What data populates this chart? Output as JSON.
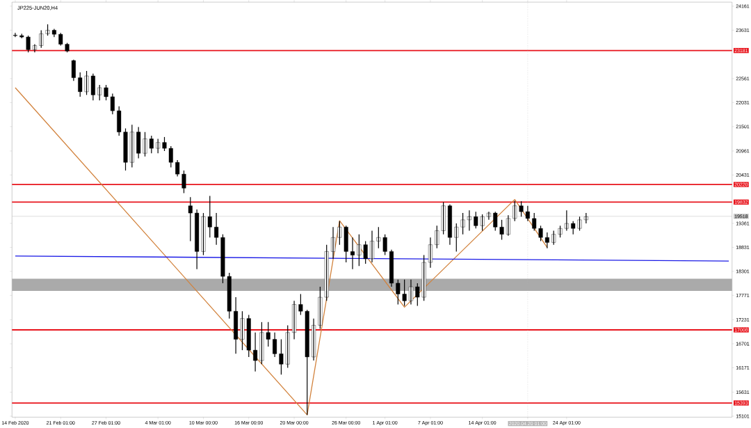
{
  "chart_data": {
    "type": "candlestick",
    "title": "JP225-JUN20,H4",
    "color": "#000000",
    "categories": [
      "14 Feb 2020",
      null,
      null,
      null,
      null,
      null,
      null,
      "21 Feb 01:00",
      null,
      null,
      null,
      null,
      null,
      null,
      "27 Feb 01:00",
      null,
      null,
      null,
      null,
      null,
      null,
      null,
      "4 Mar 01:00",
      null,
      null,
      null,
      null,
      null,
      null,
      "10 Mar 00:00",
      null,
      null,
      null,
      null,
      null,
      null,
      "16 Mar 00:00",
      null,
      null,
      null,
      null,
      null,
      null,
      "20 Mar 00:00",
      null,
      null,
      null,
      null,
      null,
      null,
      null,
      "26 Mar 00:00",
      null,
      null,
      null,
      null,
      null,
      "1 Apr 01:00",
      null,
      null,
      null,
      null,
      null,
      null,
      "7 Apr 01:00",
      null,
      null,
      null,
      null,
      null,
      null,
      null,
      "14 Apr 01:00",
      null,
      null,
      null,
      null,
      null,
      null,
      "2020.04.20 01:00",
      null,
      null,
      null,
      null,
      null,
      "24 Apr 01:00",
      null,
      null,
      null,
      null,
      null,
      null,
      null,
      null,
      null,
      null,
      null,
      null,
      null,
      null,
      null,
      null,
      null,
      null,
      null,
      null,
      null,
      null,
      null,
      null,
      null
    ],
    "ohlc": [
      [
        23520,
        23570,
        23480,
        23510
      ],
      [
        23510,
        23550,
        23450,
        23480
      ],
      [
        23480,
        23510,
        23140,
        23200
      ],
      [
        23200,
        23320,
        23140,
        23290
      ],
      [
        23290,
        23630,
        23240,
        23550
      ],
      [
        23550,
        23760,
        23510,
        23630
      ],
      [
        23630,
        23660,
        23480,
        23540
      ],
      [
        23540,
        23570,
        23290,
        23320
      ],
      [
        23320,
        23350,
        23140,
        23170
      ],
      [
        22960,
        22980,
        22510,
        22580
      ],
      [
        22580,
        22700,
        22160,
        22270
      ],
      [
        22270,
        22730,
        22200,
        22620
      ],
      [
        22620,
        22670,
        22080,
        22200
      ],
      [
        22200,
        22420,
        22080,
        22360
      ],
      [
        22360,
        22420,
        22080,
        22160
      ],
      [
        22160,
        22230,
        21770,
        21850
      ],
      [
        21850,
        21950,
        21300,
        21380
      ],
      [
        21380,
        21460,
        20530,
        20710
      ],
      [
        20710,
        21540,
        20600,
        21380
      ],
      [
        21380,
        21490,
        20800,
        20910
      ],
      [
        20910,
        21380,
        20840,
        21230
      ],
      [
        21230,
        21300,
        20910,
        21020
      ],
      [
        21020,
        21230,
        20910,
        21150
      ],
      [
        21150,
        21270,
        20960,
        21020
      ],
      [
        21020,
        21070,
        20600,
        20710
      ],
      [
        20710,
        20760,
        20400,
        20450
      ],
      [
        20450,
        20530,
        20030,
        20140
      ],
      [
        19750,
        19940,
        18970,
        19590
      ],
      [
        19590,
        19670,
        18350,
        18740
      ],
      [
        18740,
        19590,
        18660,
        19510
      ],
      [
        19510,
        19970,
        19050,
        19280
      ],
      [
        19280,
        19590,
        18890,
        19050
      ],
      [
        19050,
        19120,
        18040,
        18190
      ],
      [
        18190,
        18270,
        17260,
        17420
      ],
      [
        17420,
        17730,
        16480,
        16800
      ],
      [
        16800,
        17420,
        16560,
        17260
      ],
      [
        17260,
        17340,
        16410,
        16560
      ],
      [
        16560,
        16950,
        16090,
        16330
      ],
      [
        16330,
        17180,
        16250,
        16950
      ],
      [
        16950,
        17180,
        16640,
        16800
      ],
      [
        16800,
        16950,
        16410,
        16480
      ],
      [
        16480,
        16800,
        16020,
        16250
      ],
      [
        16250,
        17110,
        16170,
        16950
      ],
      [
        16950,
        17650,
        16800,
        17570
      ],
      [
        17570,
        17800,
        17340,
        17420
      ],
      [
        17420,
        17450,
        15130,
        16410
      ],
      [
        16410,
        17260,
        16330,
        17110
      ],
      [
        17110,
        17960,
        17030,
        17730
      ],
      [
        17730,
        18890,
        17650,
        18740
      ],
      [
        18740,
        19280,
        18580,
        19050
      ],
      [
        19050,
        19410,
        18890,
        19280
      ],
      [
        19280,
        19310,
        18500,
        18740
      ],
      [
        18740,
        19050,
        18350,
        18660
      ],
      [
        18660,
        19120,
        18420,
        18890
      ],
      [
        18890,
        18970,
        18470,
        18580
      ],
      [
        18580,
        19200,
        18500,
        18970
      ],
      [
        18970,
        19280,
        18810,
        19050
      ],
      [
        19050,
        19120,
        18660,
        18740
      ],
      [
        18740,
        18780,
        17960,
        18040
      ],
      [
        18040,
        18120,
        17570,
        17800
      ],
      [
        17800,
        18120,
        17540,
        17650
      ],
      [
        17650,
        18120,
        17570,
        17960
      ],
      [
        17960,
        18040,
        17540,
        17730
      ],
      [
        17730,
        18660,
        17650,
        18500
      ],
      [
        18500,
        19050,
        18380,
        18890
      ],
      [
        18890,
        19310,
        18810,
        19200
      ],
      [
        19200,
        19830,
        19120,
        19750
      ],
      [
        19750,
        19780,
        18890,
        19050
      ],
      [
        19050,
        19360,
        18740,
        19280
      ],
      [
        19280,
        19590,
        19120,
        19440
      ],
      [
        19440,
        19650,
        19200,
        19510
      ],
      [
        19510,
        19620,
        19250,
        19310
      ],
      [
        19310,
        19560,
        19200,
        19510
      ],
      [
        19510,
        19620,
        19440,
        19590
      ],
      [
        19590,
        19620,
        19200,
        19280
      ],
      [
        19280,
        19440,
        19000,
        19120
      ],
      [
        19120,
        19540,
        19090,
        19470
      ],
      [
        19470,
        19860,
        19410,
        19750
      ],
      [
        19750,
        19850,
        19510,
        19620
      ],
      [
        19620,
        19750,
        19410,
        19470
      ],
      [
        19470,
        19590,
        19200,
        19250
      ],
      [
        19250,
        19310,
        18970,
        19050
      ],
      [
        19050,
        19160,
        18810,
        18940
      ],
      [
        18940,
        19200,
        18890,
        19120
      ],
      [
        19120,
        19310,
        19050,
        19250
      ],
      [
        19250,
        19650,
        19200,
        19360
      ],
      [
        19360,
        19410,
        19120,
        19250
      ],
      [
        19250,
        19510,
        19200,
        19440
      ],
      [
        19440,
        19590,
        19360,
        19510
      ],
      null,
      null,
      null,
      null,
      null,
      null,
      null,
      null,
      null,
      null,
      null,
      null,
      null,
      null,
      null,
      null,
      null,
      null,
      null,
      null,
      null,
      null
    ],
    "series": [
      {
        "type": "line",
        "color": "#d2823c",
        "values": [
          22360,
          null,
          null,
          null,
          null,
          null,
          null,
          null,
          null,
          null,
          null,
          null,
          null,
          null,
          null,
          null,
          null,
          null,
          null,
          null,
          null,
          null,
          null,
          null,
          null,
          null,
          null,
          null,
          null,
          null,
          null,
          null,
          null,
          null,
          null,
          null,
          null,
          null,
          null,
          null,
          null,
          null,
          null,
          null,
          null,
          15130,
          null,
          null,
          null,
          null,
          19420,
          null,
          null,
          null,
          null,
          null,
          null,
          null,
          null,
          null,
          17510,
          null,
          null,
          null,
          null,
          null,
          null,
          null,
          null,
          null,
          null,
          null,
          null,
          null,
          null,
          null,
          null,
          19890,
          null,
          null,
          null,
          null,
          18830,
          null,
          null,
          null,
          null,
          null,
          null,
          null,
          null,
          null,
          null,
          null,
          null,
          null,
          null,
          null,
          null,
          null,
          null,
          null,
          null,
          null,
          null,
          null,
          null,
          null,
          null,
          null,
          null
        ]
      },
      {
        "type": "line",
        "color": "#1a1ae6",
        "values": [
          18640,
          null,
          null,
          null,
          null,
          null,
          null,
          null,
          null,
          null,
          null,
          null,
          null,
          null,
          null,
          null,
          null,
          null,
          null,
          null,
          null,
          null,
          null,
          null,
          null,
          null,
          null,
          null,
          null,
          null,
          null,
          null,
          null,
          null,
          null,
          null,
          null,
          null,
          null,
          null,
          null,
          null,
          null,
          null,
          null,
          null,
          null,
          null,
          null,
          null,
          null,
          null,
          null,
          null,
          null,
          null,
          null,
          null,
          null,
          null,
          null,
          null,
          null,
          null,
          null,
          null,
          null,
          null,
          null,
          null,
          null,
          null,
          null,
          null,
          null,
          null,
          null,
          null,
          null,
          null,
          null,
          null,
          null,
          null,
          null,
          null,
          null,
          null,
          null,
          null,
          null,
          null,
          null,
          null,
          null,
          null,
          null,
          null,
          null,
          null,
          null,
          null,
          null,
          null,
          null,
          null,
          null,
          null,
          null,
          null,
          18530
        ]
      }
    ],
    "ref_lines": [
      {
        "axis": "y",
        "value": 23181,
        "label": "23181",
        "color": "#e8141c"
      },
      {
        "axis": "y",
        "value": 20220,
        "label": "20220",
        "color": "#e8141c"
      },
      {
        "axis": "y",
        "value": 19832,
        "label": "19832",
        "color": "#e8141c"
      },
      {
        "axis": "y",
        "value": 17008,
        "label": "17008",
        "color": "#e8141c"
      },
      {
        "axis": "y",
        "value": 15393,
        "label": "15393",
        "color": "#e8141c"
      },
      {
        "axis": "y",
        "value": 19518,
        "label": "19518",
        "color": "#c8c8c8"
      },
      {
        "axis": "x",
        "value": "2020.04.20 01:00",
        "color": "#b4b4b4",
        "line_style": "dotted"
      }
    ],
    "bands": [
      {
        "axis": "y",
        "from": 17870,
        "to": 18140,
        "color": "#aaaaaa"
      }
    ],
    "ylim": [
      15080,
      24250
    ],
    "yticks": [
      15101,
      15631,
      16171,
      16701,
      17231,
      17771,
      18301,
      18831,
      19361,
      20431,
      20961,
      21501,
      22031,
      22561,
      23631,
      24161
    ]
  }
}
